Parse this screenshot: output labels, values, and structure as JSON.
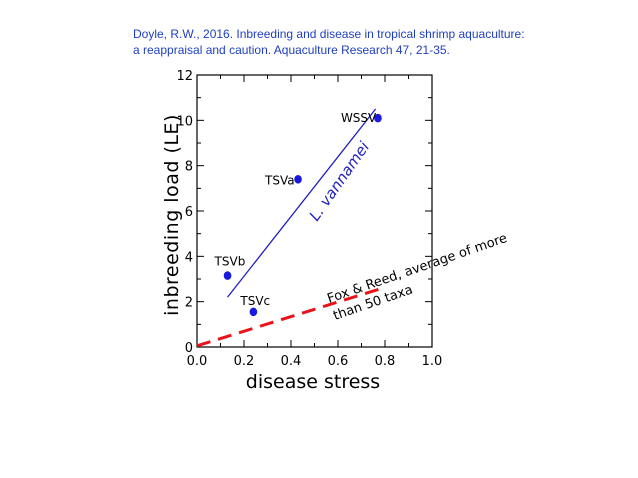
{
  "citation": {
    "line1": "Doyle, R.W., 2016. Inbreeding and disease in tropical shrimp aquaculture:",
    "line2": "a reappraisal and caution. Aquaculture Research 47, 21-35."
  },
  "chart_data": {
    "type": "scatter",
    "xlabel": "disease stress",
    "ylabel": "inbreeding load (LE)",
    "xlim": [
      0.0,
      1.0
    ],
    "ylim": [
      0,
      12
    ],
    "x_ticks": [
      "0.0",
      "0.2",
      "0.4",
      "0.6",
      "0.8",
      "1.0"
    ],
    "y_ticks": [
      "0",
      "2",
      "4",
      "6",
      "8",
      "10",
      "12"
    ],
    "grid": false,
    "points": [
      {
        "label": "WSSV",
        "x": 0.77,
        "y": 10.1
      },
      {
        "label": "TSVa",
        "x": 0.43,
        "y": 7.4
      },
      {
        "label": "TSVb",
        "x": 0.13,
        "y": 3.15
      },
      {
        "label": "TSVc",
        "x": 0.24,
        "y": 1.55
      }
    ],
    "lines": [
      {
        "name": "L. vannamei",
        "style": "solid",
        "color": "#1f1fbf",
        "x": [
          0.13,
          0.76
        ],
        "y": [
          2.2,
          10.5
        ]
      },
      {
        "name": "Fox & Reed, average of more than 50 taxa",
        "style": "dashed",
        "color": "#e8131a",
        "x": [
          0.0,
          0.79
        ],
        "y": [
          0.05,
          2.6
        ]
      }
    ],
    "annotations": {
      "vannamei": "L. vannamei",
      "fox_line1": "Fox & Reed, average of more",
      "fox_line2": "than 50 taxa"
    },
    "colors": {
      "points": "#1a1adf",
      "vannamei": "#1f1fbf",
      "fox": "#e8131a",
      "axes": "#000000"
    }
  }
}
